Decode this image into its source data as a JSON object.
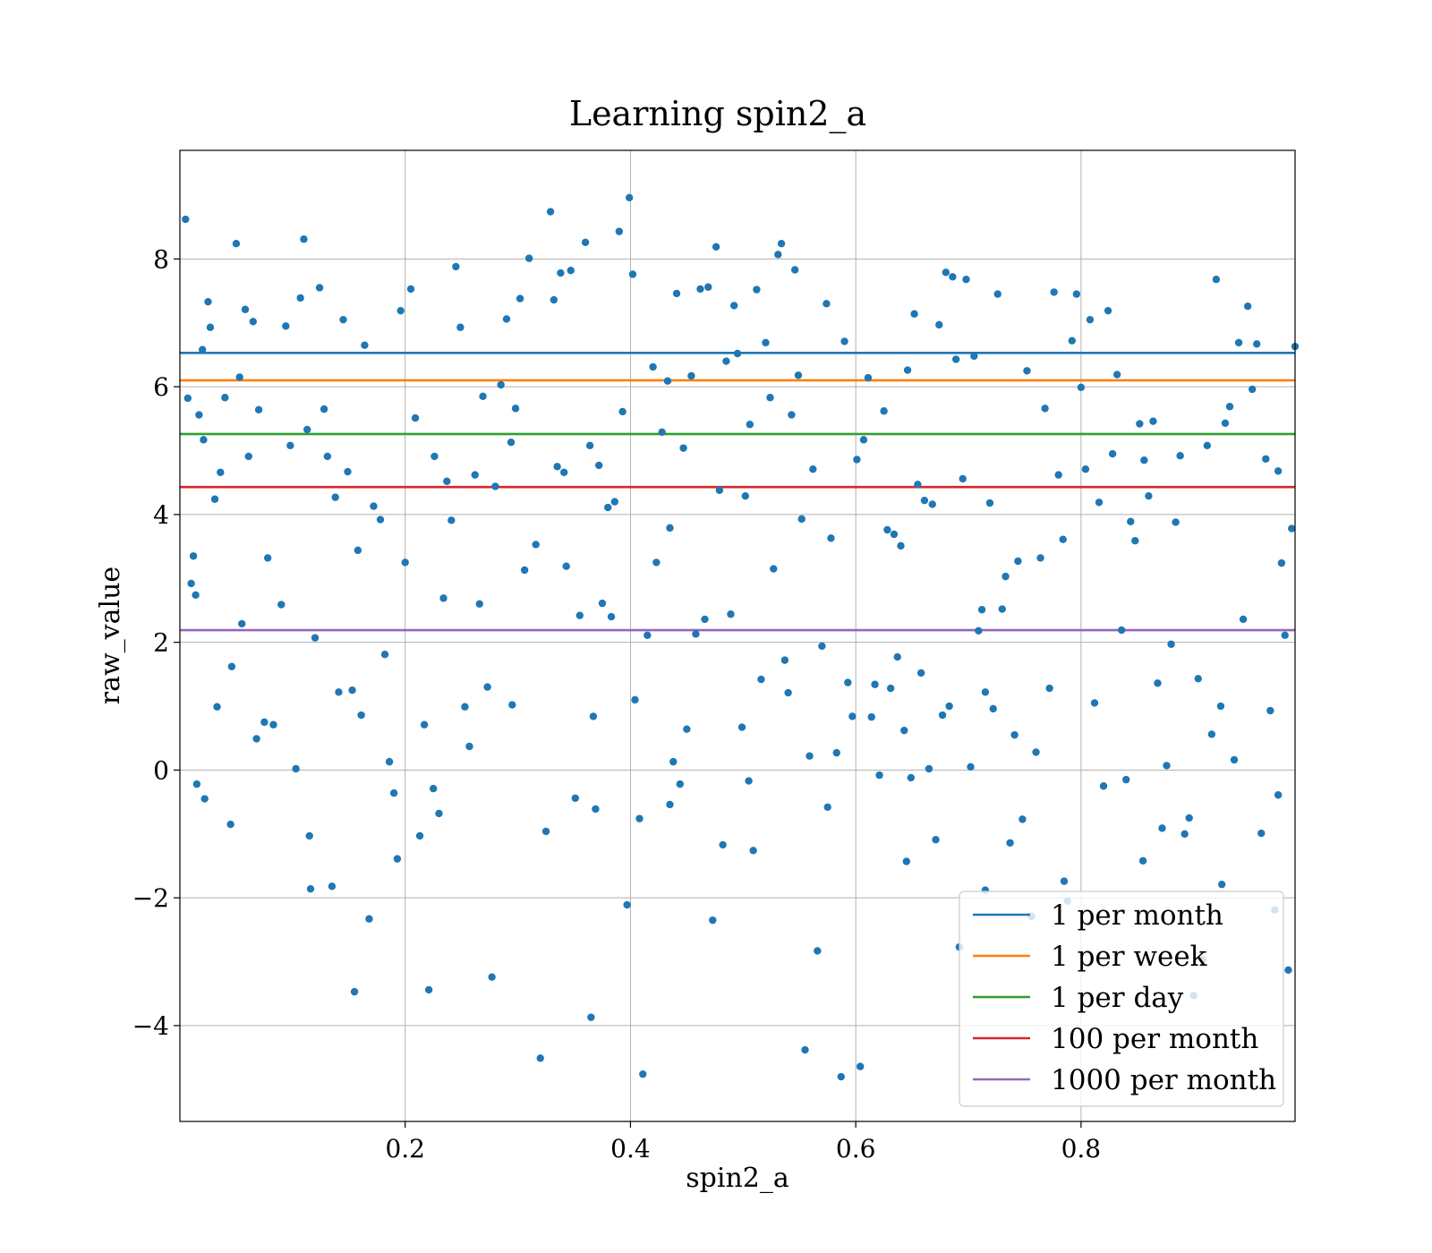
{
  "chart_data": {
    "type": "scatter",
    "title": "Learning spin2_a",
    "xlabel": "spin2_a",
    "ylabel": "raw_value",
    "xlim": [
      0.0,
      0.99
    ],
    "ylim": [
      -5.5,
      9.7
    ],
    "xticks": [
      0.2,
      0.4,
      0.6,
      0.8
    ],
    "xtick_labels": [
      "0.2",
      "0.4",
      "0.6",
      "0.8"
    ],
    "yticks": [
      -4,
      -2,
      0,
      2,
      4,
      6,
      8
    ],
    "ytick_labels": [
      "−4",
      "−2",
      "0",
      "2",
      "4",
      "6",
      "8"
    ],
    "grid": true,
    "legend_position": "lower-right",
    "marker_color": "#1f77b4",
    "hlines": [
      {
        "name": "1 per month",
        "y": 6.53,
        "color": "#1f77b4"
      },
      {
        "name": "1 per week",
        "y": 6.1,
        "color": "#ff7f0e"
      },
      {
        "name": "1 per day",
        "y": 5.26,
        "color": "#2ca02c"
      },
      {
        "name": "100 per month",
        "y": 4.43,
        "color": "#d62728"
      },
      {
        "name": "1000 per month",
        "y": 2.19,
        "color": "#9467bd"
      }
    ],
    "points": [
      [
        0.005,
        8.62
      ],
      [
        0.007,
        5.82
      ],
      [
        0.01,
        2.92
      ],
      [
        0.012,
        3.35
      ],
      [
        0.014,
        2.74
      ],
      [
        0.017,
        5.56
      ],
      [
        0.02,
        6.58
      ],
      [
        0.021,
        5.17
      ],
      [
        0.022,
        -0.45
      ],
      [
        0.025,
        7.33
      ],
      [
        0.027,
        6.93
      ],
      [
        0.031,
        4.24
      ],
      [
        0.033,
        0.99
      ],
      [
        0.036,
        4.66
      ],
      [
        0.04,
        5.83
      ],
      [
        0.046,
        1.62
      ],
      [
        0.05,
        8.24
      ],
      [
        0.053,
        6.15
      ],
      [
        0.055,
        2.29
      ],
      [
        0.058,
        7.21
      ],
      [
        0.061,
        4.91
      ],
      [
        0.065,
        7.02
      ],
      [
        0.068,
        0.49
      ],
      [
        0.07,
        5.64
      ],
      [
        0.075,
        0.75
      ],
      [
        0.078,
        3.32
      ],
      [
        0.083,
        0.71
      ],
      [
        0.09,
        2.59
      ],
      [
        0.094,
        6.95
      ],
      [
        0.098,
        5.08
      ],
      [
        0.103,
        0.02
      ],
      [
        0.107,
        7.39
      ],
      [
        0.11,
        8.31
      ],
      [
        0.113,
        5.33
      ],
      [
        0.116,
        -1.86
      ],
      [
        0.12,
        2.07
      ],
      [
        0.124,
        7.55
      ],
      [
        0.128,
        5.65
      ],
      [
        0.131,
        4.91
      ],
      [
        0.135,
        -1.82
      ],
      [
        0.138,
        4.27
      ],
      [
        0.141,
        1.22
      ],
      [
        0.145,
        7.05
      ],
      [
        0.149,
        4.67
      ],
      [
        0.153,
        1.25
      ],
      [
        0.158,
        3.44
      ],
      [
        0.161,
        0.86
      ],
      [
        0.164,
        6.65
      ],
      [
        0.168,
        -2.33
      ],
      [
        0.172,
        4.13
      ],
      [
        0.178,
        3.92
      ],
      [
        0.182,
        1.81
      ],
      [
        0.186,
        0.13
      ],
      [
        0.19,
        -0.36
      ],
      [
        0.193,
        -1.39
      ],
      [
        0.196,
        7.19
      ],
      [
        0.2,
        3.25
      ],
      [
        0.205,
        7.53
      ],
      [
        0.209,
        5.51
      ],
      [
        0.213,
        -1.03
      ],
      [
        0.217,
        0.71
      ],
      [
        0.221,
        -3.44
      ],
      [
        0.226,
        4.91
      ],
      [
        0.23,
        -0.68
      ],
      [
        0.234,
        2.69
      ],
      [
        0.237,
        4.52
      ],
      [
        0.241,
        3.91
      ],
      [
        0.245,
        7.88
      ],
      [
        0.249,
        6.93
      ],
      [
        0.253,
        0.99
      ],
      [
        0.257,
        0.37
      ],
      [
        0.262,
        4.62
      ],
      [
        0.266,
        2.6
      ],
      [
        0.269,
        5.85
      ],
      [
        0.273,
        1.3
      ],
      [
        0.277,
        -3.24
      ],
      [
        0.28,
        4.44
      ],
      [
        0.285,
        6.03
      ],
      [
        0.29,
        7.06
      ],
      [
        0.294,
        5.13
      ],
      [
        0.298,
        5.66
      ],
      [
        0.302,
        7.38
      ],
      [
        0.306,
        3.13
      ],
      [
        0.31,
        8.01
      ],
      [
        0.316,
        3.53
      ],
      [
        0.32,
        -4.51
      ],
      [
        0.325,
        -0.96
      ],
      [
        0.329,
        8.74
      ],
      [
        0.332,
        7.36
      ],
      [
        0.335,
        4.75
      ],
      [
        0.338,
        7.78
      ],
      [
        0.341,
        4.66
      ],
      [
        0.343,
        3.19
      ],
      [
        0.347,
        7.82
      ],
      [
        0.351,
        -0.44
      ],
      [
        0.355,
        2.42
      ],
      [
        0.36,
        8.26
      ],
      [
        0.364,
        5.08
      ],
      [
        0.367,
        0.84
      ],
      [
        0.369,
        -0.61
      ],
      [
        0.372,
        4.77
      ],
      [
        0.375,
        2.61
      ],
      [
        0.38,
        4.11
      ],
      [
        0.383,
        2.4
      ],
      [
        0.386,
        4.2
      ],
      [
        0.39,
        8.43
      ],
      [
        0.393,
        5.61
      ],
      [
        0.397,
        -2.11
      ],
      [
        0.399,
        8.96
      ],
      [
        0.402,
        7.76
      ],
      [
        0.404,
        1.1
      ],
      [
        0.408,
        -0.76
      ],
      [
        0.411,
        -4.76
      ],
      [
        0.415,
        2.11
      ],
      [
        0.42,
        6.31
      ],
      [
        0.423,
        3.25
      ],
      [
        0.428,
        5.29
      ],
      [
        0.433,
        6.09
      ],
      [
        0.435,
        3.79
      ],
      [
        0.438,
        0.13
      ],
      [
        0.441,
        7.46
      ],
      [
        0.444,
        -0.22
      ],
      [
        0.447,
        5.04
      ],
      [
        0.45,
        0.64
      ],
      [
        0.454,
        6.17
      ],
      [
        0.458,
        2.13
      ],
      [
        0.462,
        7.53
      ],
      [
        0.466,
        2.36
      ],
      [
        0.469,
        7.56
      ],
      [
        0.473,
        -2.35
      ],
      [
        0.476,
        8.19
      ],
      [
        0.479,
        4.38
      ],
      [
        0.482,
        -1.17
      ],
      [
        0.485,
        6.4
      ],
      [
        0.489,
        2.44
      ],
      [
        0.492,
        7.27
      ],
      [
        0.495,
        6.52
      ],
      [
        0.499,
        0.67
      ],
      [
        0.502,
        4.29
      ],
      [
        0.506,
        5.41
      ],
      [
        0.509,
        -1.26
      ],
      [
        0.512,
        7.52
      ],
      [
        0.516,
        1.42
      ],
      [
        0.52,
        6.69
      ],
      [
        0.524,
        5.83
      ],
      [
        0.527,
        3.15
      ],
      [
        0.531,
        8.07
      ],
      [
        0.534,
        8.24
      ],
      [
        0.537,
        1.72
      ],
      [
        0.54,
        1.21
      ],
      [
        0.543,
        5.56
      ],
      [
        0.546,
        7.83
      ],
      [
        0.549,
        6.18
      ],
      [
        0.552,
        3.93
      ],
      [
        0.555,
        -4.38
      ],
      [
        0.559,
        0.22
      ],
      [
        0.562,
        4.71
      ],
      [
        0.566,
        -2.83
      ],
      [
        0.57,
        1.94
      ],
      [
        0.574,
        7.3
      ],
      [
        0.578,
        3.63
      ],
      [
        0.583,
        0.27
      ],
      [
        0.587,
        -4.8
      ],
      [
        0.59,
        6.71
      ],
      [
        0.593,
        1.37
      ],
      [
        0.597,
        0.84
      ],
      [
        0.601,
        4.86
      ],
      [
        0.604,
        -4.64
      ],
      [
        0.607,
        5.17
      ],
      [
        0.611,
        6.14
      ],
      [
        0.614,
        0.83
      ],
      [
        0.617,
        1.34
      ],
      [
        0.621,
        -0.08
      ],
      [
        0.625,
        5.62
      ],
      [
        0.628,
        3.76
      ],
      [
        0.631,
        1.28
      ],
      [
        0.634,
        3.69
      ],
      [
        0.637,
        1.77
      ],
      [
        0.64,
        3.51
      ],
      [
        0.643,
        0.62
      ],
      [
        0.646,
        6.26
      ],
      [
        0.649,
        -0.12
      ],
      [
        0.652,
        7.14
      ],
      [
        0.655,
        4.47
      ],
      [
        0.658,
        1.52
      ],
      [
        0.661,
        4.22
      ],
      [
        0.665,
        0.02
      ],
      [
        0.668,
        4.16
      ],
      [
        0.671,
        -1.09
      ],
      [
        0.674,
        6.97
      ],
      [
        0.677,
        0.86
      ],
      [
        0.68,
        7.79
      ],
      [
        0.683,
        1.0
      ],
      [
        0.686,
        7.72
      ],
      [
        0.689,
        6.43
      ],
      [
        0.692,
        -2.77
      ],
      [
        0.695,
        4.56
      ],
      [
        0.698,
        7.68
      ],
      [
        0.702,
        0.05
      ],
      [
        0.705,
        6.48
      ],
      [
        0.709,
        2.18
      ],
      [
        0.712,
        2.51
      ],
      [
        0.715,
        1.22
      ],
      [
        0.719,
        4.18
      ],
      [
        0.722,
        0.96
      ],
      [
        0.726,
        7.45
      ],
      [
        0.73,
        2.52
      ],
      [
        0.733,
        3.03
      ],
      [
        0.737,
        -1.14
      ],
      [
        0.741,
        0.55
      ],
      [
        0.744,
        3.27
      ],
      [
        0.748,
        -0.77
      ],
      [
        0.752,
        6.25
      ],
      [
        0.756,
        -2.29
      ],
      [
        0.76,
        0.28
      ],
      [
        0.764,
        3.32
      ],
      [
        0.768,
        5.66
      ],
      [
        0.772,
        1.28
      ],
      [
        0.776,
        7.48
      ],
      [
        0.78,
        4.62
      ],
      [
        0.784,
        3.61
      ],
      [
        0.788,
        -2.05
      ],
      [
        0.792,
        6.72
      ],
      [
        0.796,
        7.45
      ],
      [
        0.8,
        5.99
      ],
      [
        0.804,
        4.71
      ],
      [
        0.808,
        7.05
      ],
      [
        0.812,
        1.05
      ],
      [
        0.816,
        4.19
      ],
      [
        0.82,
        -0.25
      ],
      [
        0.824,
        7.19
      ],
      [
        0.828,
        4.95
      ],
      [
        0.832,
        6.19
      ],
      [
        0.836,
        2.19
      ],
      [
        0.84,
        -0.15
      ],
      [
        0.844,
        3.89
      ],
      [
        0.848,
        3.59
      ],
      [
        0.852,
        5.42
      ],
      [
        0.856,
        4.85
      ],
      [
        0.86,
        4.29
      ],
      [
        0.864,
        5.46
      ],
      [
        0.868,
        1.36
      ],
      [
        0.872,
        -0.91
      ],
      [
        0.876,
        0.07
      ],
      [
        0.88,
        1.97
      ],
      [
        0.884,
        3.88
      ],
      [
        0.888,
        4.92
      ],
      [
        0.892,
        -1.0
      ],
      [
        0.896,
        -0.75
      ],
      [
        0.9,
        -3.53
      ],
      [
        0.904,
        1.43
      ],
      [
        0.908,
        -2.97
      ],
      [
        0.912,
        5.08
      ],
      [
        0.916,
        0.56
      ],
      [
        0.92,
        7.68
      ],
      [
        0.924,
        1.0
      ],
      [
        0.928,
        5.43
      ],
      [
        0.932,
        5.69
      ],
      [
        0.936,
        0.16
      ],
      [
        0.94,
        6.69
      ],
      [
        0.944,
        2.36
      ],
      [
        0.948,
        7.26
      ],
      [
        0.952,
        5.96
      ],
      [
        0.956,
        6.67
      ],
      [
        0.96,
        -0.99
      ],
      [
        0.964,
        4.87
      ],
      [
        0.968,
        0.93
      ],
      [
        0.972,
        -2.19
      ],
      [
        0.975,
        4.68
      ],
      [
        0.978,
        3.24
      ],
      [
        0.981,
        2.11
      ],
      [
        0.984,
        -3.13
      ],
      [
        0.987,
        3.78
      ],
      [
        0.99,
        6.63
      ],
      [
        0.015,
        -0.22
      ],
      [
        0.045,
        -0.85
      ],
      [
        0.115,
        -1.03
      ],
      [
        0.155,
        -3.47
      ],
      [
        0.225,
        -0.29
      ],
      [
        0.295,
        1.02
      ],
      [
        0.365,
        -3.87
      ],
      [
        0.435,
        -0.54
      ],
      [
        0.505,
        -0.17
      ],
      [
        0.575,
        -0.58
      ],
      [
        0.645,
        -1.43
      ],
      [
        0.715,
        -1.88
      ],
      [
        0.785,
        -1.74
      ],
      [
        0.855,
        -1.42
      ],
      [
        0.925,
        -1.79
      ],
      [
        0.975,
        -0.39
      ]
    ]
  }
}
